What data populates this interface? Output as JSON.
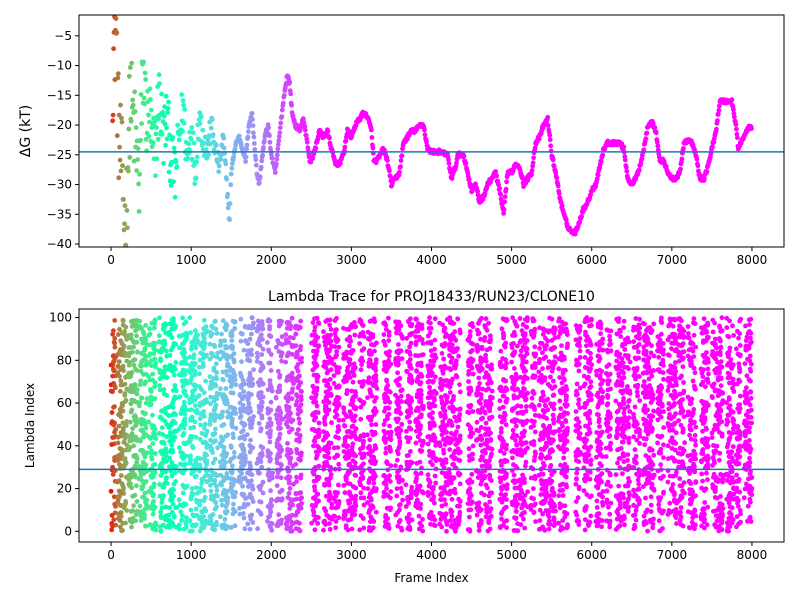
{
  "chart_data": [
    {
      "type": "scatter",
      "title": "",
      "xlabel": "",
      "ylabel": "ΔG (kT)",
      "xlim": [
        -400,
        8400
      ],
      "ylim": [
        -40.5,
        -1.5
      ],
      "xticks": [
        0,
        1000,
        2000,
        3000,
        4000,
        5000,
        6000,
        7000,
        8000
      ],
      "yticks": [
        -40,
        -35,
        -30,
        -25,
        -20,
        -15,
        -10,
        -5
      ],
      "hline": -24.5,
      "hline_color": "#1f77b4",
      "grid": false,
      "colormap": "rainbow (red at frame 0 to violet at later frames)",
      "series": [
        {
          "x": [
            20,
            60,
            90,
            130,
            180,
            240,
            300,
            350,
            400,
            450,
            480,
            520,
            560,
            600,
            650,
            700,
            750,
            800,
            850,
            900,
            950,
            1000,
            1050,
            1100,
            1150,
            1200,
            1250,
            1300,
            1350,
            1400,
            1450,
            1480,
            1500,
            1520,
            1560,
            1600,
            1640,
            1680,
            1720,
            1760,
            1800,
            1820,
            1850,
            1880,
            1920,
            1960,
            2000,
            2050,
            2100,
            2150,
            2200,
            2230,
            2260,
            2300,
            2350,
            2400,
            2450,
            2480,
            2500,
            2550,
            2600,
            2650,
            2700,
            2750,
            2800,
            2850,
            2900,
            2950,
            3000,
            3050,
            3100,
            3150,
            3200,
            3250,
            3280,
            3320,
            3400,
            3450,
            3500,
            3550,
            3600,
            3650,
            3700,
            3750,
            3800,
            3850,
            3900,
            3950,
            4000,
            4100,
            4200,
            4250,
            4300,
            4330,
            4400,
            4500,
            4550,
            4600,
            4650,
            4700,
            4750,
            4800,
            4850,
            4900,
            4950,
            5000,
            5050,
            5100,
            5150,
            5200,
            5250,
            5300,
            5350,
            5400,
            5450,
            5500,
            5550,
            5600,
            5650,
            5700,
            5750,
            5800,
            5850,
            5900,
            5950,
            6000,
            6050,
            6100,
            6150,
            6200,
            6250,
            6300,
            6350,
            6400,
            6450,
            6500,
            6550,
            6600,
            6650,
            6700,
            6750,
            6800,
            6850,
            6900,
            6950,
            7000,
            7050,
            7100,
            7150,
            7200,
            7250,
            7300,
            7350,
            7400,
            7450,
            7500,
            7550,
            7600,
            7650,
            7700,
            7750,
            7800,
            7830,
            7860,
            7900,
            7950,
            8000
          ],
          "y": [
            -10,
            -3,
            -20,
            -27,
            -38,
            -15,
            -22,
            -30,
            -11,
            -20,
            -18,
            -25,
            -23,
            -15,
            -22,
            -19,
            -26,
            -29,
            -22,
            -17,
            -26,
            -20,
            -28,
            -18,
            -22,
            -25,
            -20,
            -24,
            -27,
            -22,
            -31,
            -36,
            -28,
            -26,
            -23,
            -22,
            -24,
            -26,
            -20,
            -18,
            -25,
            -28,
            -30,
            -26,
            -22,
            -20,
            -25,
            -28,
            -22,
            -16,
            -11.5,
            -13,
            -18,
            -20,
            -21,
            -19,
            -23,
            -26,
            -26,
            -24,
            -21,
            -22,
            -21,
            -24,
            -26.5,
            -26.5,
            -25,
            -21,
            -22,
            -20,
            -19,
            -18,
            -18.5,
            -21,
            -26,
            -26,
            -24,
            -26,
            -30,
            -29,
            -28,
            -23,
            -22,
            -21,
            -21,
            -20,
            -20,
            -24,
            -24.5,
            -24.5,
            -25,
            -29,
            -27,
            -25,
            -25,
            -31,
            -30,
            -33,
            -32,
            -30,
            -29,
            -28,
            -31,
            -35,
            -28,
            -28,
            -26.5,
            -27,
            -30,
            -29,
            -28,
            -23,
            -22,
            -20,
            -19,
            -25,
            -28,
            -32,
            -35,
            -37,
            -38,
            -38,
            -36,
            -34,
            -33,
            -31,
            -30,
            -27,
            -24,
            -23,
            -23,
            -23,
            -23,
            -24,
            -29,
            -30,
            -29,
            -27,
            -24,
            -20,
            -19.5,
            -21,
            -26,
            -26,
            -28,
            -29,
            -29,
            -28,
            -23,
            -22.5,
            -23,
            -25,
            -29,
            -29,
            -27,
            -24,
            -21,
            -16,
            -16,
            -16,
            -16,
            -20,
            -24,
            -23,
            -22,
            -20.5,
            -20.5
          ]
        }
      ]
    },
    {
      "type": "scatter",
      "title": "Lambda Trace for PROJ18433/RUN23/CLONE10",
      "xlabel": "Frame Index",
      "ylabel": "Lambda Index",
      "xlim": [
        -400,
        8400
      ],
      "ylim": [
        -5,
        104
      ],
      "xticks": [
        0,
        1000,
        2000,
        3000,
        4000,
        5000,
        6000,
        7000,
        8000
      ],
      "yticks": [
        0,
        20,
        40,
        60,
        80,
        100
      ],
      "hline": 29,
      "hline_color": "#1f77b4",
      "grid": false,
      "colormap": "rainbow (red at frame 0 to violet at later frames)",
      "series": [
        {
          "x": [],
          "y": []
        }
      ]
    }
  ]
}
